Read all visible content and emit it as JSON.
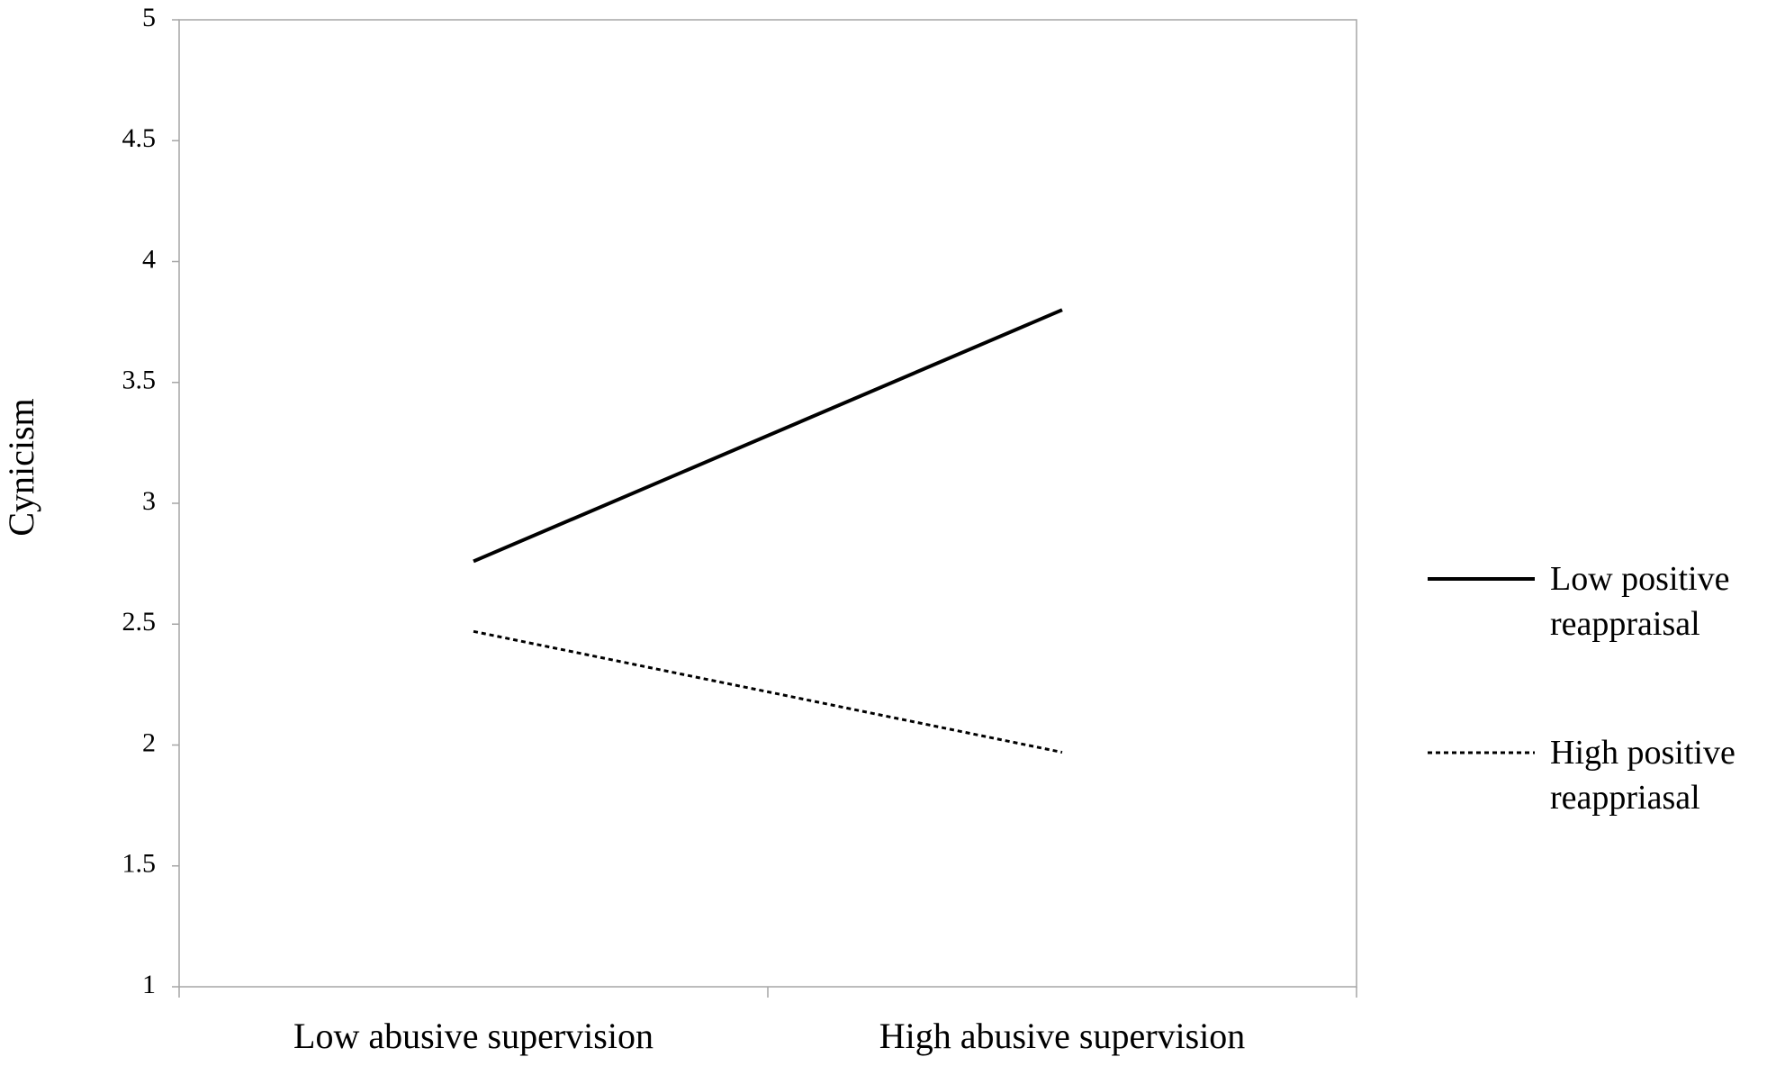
{
  "chart_data": {
    "type": "line",
    "y_label": "Cynicism",
    "categories": [
      "Low abusive supervision",
      "High abusive supervision"
    ],
    "series": [
      {
        "name": "Low positive reappraisal",
        "color": "#000000",
        "style": "solid",
        "values": [
          2.76,
          3.8
        ]
      },
      {
        "name": "High positive reappriasal",
        "color": "#000000",
        "style": "dotted",
        "values": [
          2.47,
          1.97
        ]
      }
    ],
    "ylim": [
      1,
      5
    ],
    "yticks": [
      1,
      1.5,
      2,
      2.5,
      3,
      3.5,
      4,
      4.5,
      5
    ],
    "grid": false,
    "legend": "right"
  }
}
